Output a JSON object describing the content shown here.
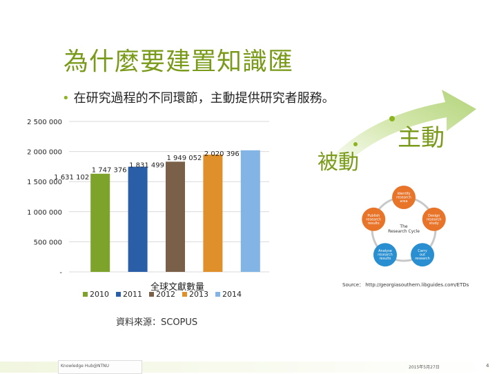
{
  "title": "為什麼要建置知識匯",
  "bullet": "在研究過程的不同環節，主動提供研究者服務。",
  "labels": {
    "passive": "被動",
    "active": "主動"
  },
  "chart_data": {
    "type": "bar",
    "title": "全球文獻數量",
    "categories": [
      "2010",
      "2011",
      "2012",
      "2013",
      "2014"
    ],
    "values": [
      1631102,
      1747376,
      1831499,
      1949052,
      2020396
    ],
    "value_labels": [
      "1 631 102",
      "1 747 376",
      "1 831 499",
      "1 949 052",
      "2 020 396"
    ],
    "colors": [
      "#7ea32a",
      "#2a5fa8",
      "#7a6048",
      "#e0902a",
      "#82b4e6"
    ],
    "ylim": [
      0,
      2500000
    ],
    "yticks": [
      0,
      500000,
      1000000,
      1500000,
      2000000,
      2500000
    ],
    "ytick_labels": [
      "-",
      "500 000",
      "1 000 000",
      "1 500 000",
      "2 000 000",
      "2 500 000"
    ],
    "grid": true,
    "legend_position": "bottom"
  },
  "source": "資料來源：SCOPUS",
  "cycle": {
    "nodes": [
      "Identify research area",
      "Design research study",
      "Carry out research",
      "Analyse research results",
      "Publish research results"
    ],
    "center": "The Research Cycle",
    "colors": [
      "#e8742a",
      "#e8742a",
      "#2a8fd0",
      "#2a8fd0",
      "#e8742a"
    ],
    "source": "Source： http://georgiasouthern.libguides.com/ETDs"
  },
  "footer": {
    "left": "Knowledge Hub@NTNU",
    "date": "2015年5月27日",
    "page": "4"
  }
}
